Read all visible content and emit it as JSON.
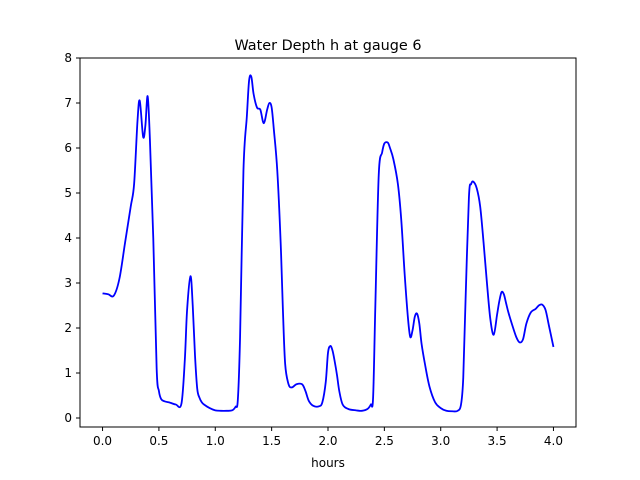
{
  "chart_data": {
    "type": "line",
    "title": "Water Depth h at gauge 6",
    "xlabel": "hours",
    "ylabel": "",
    "xlim": [
      -0.2,
      4.2
    ],
    "ylim": [
      -0.2,
      8
    ],
    "grid": false,
    "x_ticks": [
      0.0,
      0.5,
      1.0,
      1.5,
      2.0,
      2.5,
      3.0,
      3.5,
      4.0
    ],
    "x_tick_labels": [
      "0.0",
      "0.5",
      "1.0",
      "1.5",
      "2.0",
      "2.5",
      "3.0",
      "3.5",
      "4.0"
    ],
    "y_ticks": [
      0,
      1,
      2,
      3,
      4,
      5,
      6,
      7,
      8
    ],
    "y_tick_labels": [
      "0",
      "1",
      "2",
      "3",
      "4",
      "5",
      "6",
      "7",
      "8"
    ],
    "series_color": "#0000ff",
    "x": [
      0.0,
      0.05,
      0.1,
      0.15,
      0.2,
      0.25,
      0.28,
      0.31,
      0.33,
      0.36,
      0.38,
      0.4,
      0.42,
      0.45,
      0.48,
      0.5,
      0.52,
      0.55,
      0.6,
      0.65,
      0.7,
      0.73,
      0.75,
      0.78,
      0.8,
      0.82,
      0.84,
      0.86,
      0.88,
      0.9,
      0.95,
      1.0,
      1.05,
      1.1,
      1.15,
      1.18,
      1.2,
      1.22,
      1.25,
      1.28,
      1.3,
      1.32,
      1.34,
      1.37,
      1.4,
      1.43,
      1.46,
      1.48,
      1.5,
      1.52,
      1.55,
      1.58,
      1.6,
      1.62,
      1.65,
      1.68,
      1.72,
      1.77,
      1.8,
      1.83,
      1.87,
      1.92,
      1.95,
      1.98,
      2.0,
      2.02,
      2.04,
      2.06,
      2.08,
      2.1,
      2.13,
      2.18,
      2.25,
      2.3,
      2.35,
      2.38,
      2.4,
      2.42,
      2.45,
      2.48,
      2.5,
      2.53,
      2.55,
      2.58,
      2.62,
      2.65,
      2.68,
      2.71,
      2.73,
      2.75,
      2.77,
      2.79,
      2.81,
      2.83,
      2.86,
      2.9,
      2.95,
      3.0,
      3.05,
      3.1,
      3.15,
      3.18,
      3.2,
      3.22,
      3.25,
      3.27,
      3.29,
      3.32,
      3.35,
      3.38,
      3.41,
      3.44,
      3.47,
      3.5,
      3.52,
      3.54,
      3.56,
      3.58,
      3.6,
      3.63,
      3.67,
      3.7,
      3.73,
      3.76,
      3.8,
      3.84,
      3.87,
      3.9,
      3.93,
      3.96,
      4.0
    ],
    "values": [
      2.77,
      2.75,
      2.72,
      3.1,
      3.9,
      4.7,
      5.2,
      6.6,
      7.05,
      6.25,
      6.5,
      7.15,
      6.2,
      4.0,
      1.1,
      0.6,
      0.42,
      0.37,
      0.34,
      0.3,
      0.32,
      1.3,
      2.4,
      3.15,
      2.5,
      1.4,
      0.65,
      0.45,
      0.35,
      0.3,
      0.22,
      0.17,
      0.16,
      0.16,
      0.17,
      0.25,
      0.4,
      1.8,
      5.5,
      6.7,
      7.5,
      7.58,
      7.2,
      6.9,
      6.85,
      6.55,
      6.85,
      7.0,
      6.9,
      6.4,
      5.5,
      3.9,
      2.4,
      1.2,
      0.75,
      0.68,
      0.75,
      0.75,
      0.6,
      0.38,
      0.27,
      0.26,
      0.35,
      0.8,
      1.45,
      1.6,
      1.5,
      1.25,
      0.95,
      0.6,
      0.3,
      0.2,
      0.17,
      0.16,
      0.2,
      0.3,
      0.45,
      2.5,
      5.4,
      5.9,
      6.1,
      6.12,
      6.0,
      5.75,
      5.2,
      4.4,
      3.2,
      2.2,
      1.8,
      1.95,
      2.25,
      2.32,
      2.1,
      1.65,
      1.2,
      0.7,
      0.35,
      0.22,
      0.16,
      0.15,
      0.16,
      0.3,
      0.9,
      2.6,
      4.9,
      5.2,
      5.25,
      5.1,
      4.7,
      3.9,
      3.0,
      2.2,
      1.85,
      2.3,
      2.6,
      2.8,
      2.75,
      2.55,
      2.35,
      2.1,
      1.8,
      1.68,
      1.75,
      2.1,
      2.35,
      2.42,
      2.5,
      2.52,
      2.4,
      2.05,
      1.58
    ]
  }
}
